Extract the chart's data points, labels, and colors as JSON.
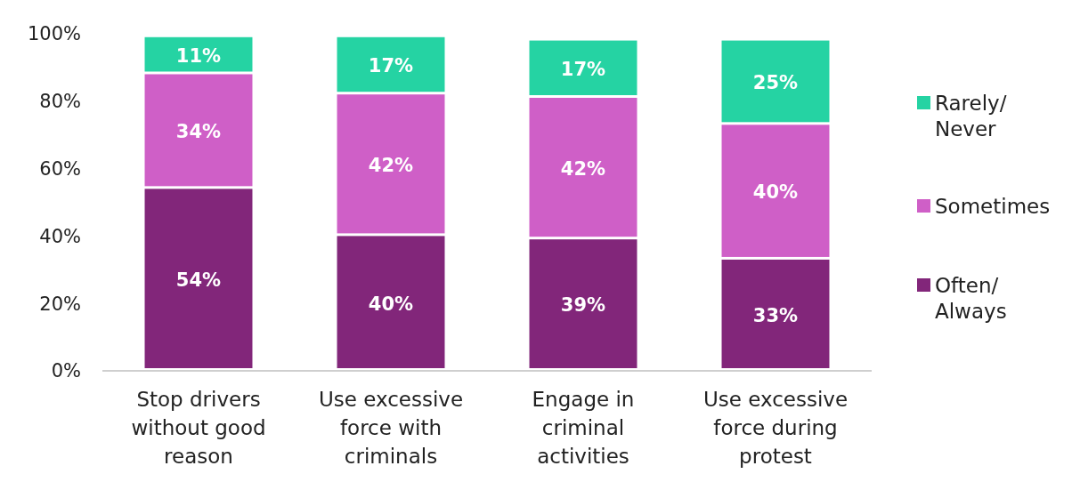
{
  "chart_data": {
    "type": "bar",
    "stacked": true,
    "categories": [
      "Stop drivers without good reason",
      "Use excessive force with criminals",
      "Engage in criminal activities",
      "Use excessive force during protest"
    ],
    "series": [
      {
        "name": "Often/ Always",
        "color": "#82267a",
        "values": [
          54,
          40,
          39,
          33
        ],
        "value_labels": [
          "54%",
          "40%",
          "39%",
          "33%"
        ]
      },
      {
        "name": "Sometimes",
        "color": "#cf5fc7",
        "values": [
          34,
          42,
          42,
          40
        ],
        "value_labels": [
          "34%",
          "42%",
          "42%",
          "40%"
        ]
      },
      {
        "name": "Rarely/ Never",
        "color": "#25d3a3",
        "values": [
          11,
          17,
          17,
          25
        ],
        "value_labels": [
          "11%",
          "17%",
          "17%",
          "25%"
        ]
      }
    ],
    "ylim": [
      0,
      100
    ],
    "yticks": [
      {
        "value": 0,
        "label": "0%"
      },
      {
        "value": 20,
        "label": "20%"
      },
      {
        "value": 40,
        "label": "40%"
      },
      {
        "value": 60,
        "label": "60%"
      },
      {
        "value": 80,
        "label": "80%"
      },
      {
        "value": 100,
        "label": "100%"
      }
    ],
    "legend": "right",
    "grid": false
  }
}
